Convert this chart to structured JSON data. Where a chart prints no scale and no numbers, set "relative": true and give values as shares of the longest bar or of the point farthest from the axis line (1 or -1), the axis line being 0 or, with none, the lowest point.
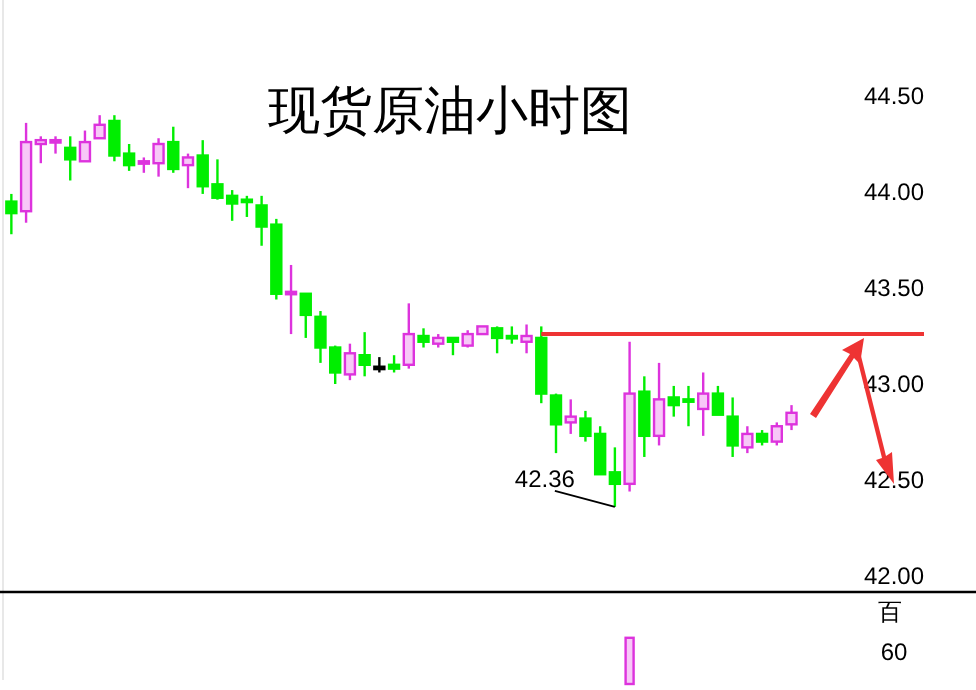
{
  "chart_data": [
    {
      "type": "candlestick",
      "title": "现货原油小时图",
      "categories": [
        null,
        null,
        null,
        null,
        null,
        null,
        null,
        null,
        null,
        null,
        null,
        null,
        null,
        null,
        null,
        null,
        null,
        null,
        null,
        null,
        null,
        null,
        null,
        null,
        null,
        null,
        null,
        null,
        null,
        null,
        null,
        null,
        null,
        null,
        null,
        null,
        null,
        null,
        null,
        null,
        null,
        null,
        null,
        null,
        null,
        null,
        null,
        null,
        null,
        null,
        null,
        null,
        null,
        null
      ],
      "ohlc": [
        [
          43.95,
          43.99,
          43.78,
          43.89
        ],
        [
          43.9,
          44.36,
          43.84,
          44.26
        ],
        [
          44.25,
          44.29,
          44.15,
          44.27
        ],
        [
          44.26,
          44.29,
          44.2,
          44.27
        ],
        [
          44.23,
          44.29,
          44.06,
          44.17
        ],
        [
          44.16,
          44.32,
          44.16,
          44.26
        ],
        [
          44.28,
          44.4,
          44.28,
          44.35
        ],
        [
          44.37,
          44.4,
          44.16,
          44.19
        ],
        [
          44.2,
          44.25,
          44.11,
          44.14
        ],
        [
          44.15,
          44.18,
          44.1,
          44.16
        ],
        [
          44.15,
          44.28,
          44.08,
          44.25
        ],
        [
          44.26,
          44.34,
          44.1,
          44.12
        ],
        [
          44.14,
          44.2,
          44.02,
          44.18
        ],
        [
          44.19,
          44.27,
          43.99,
          44.03
        ],
        [
          44.04,
          44.17,
          43.96,
          43.97
        ],
        [
          43.98,
          44.01,
          43.85,
          43.94
        ],
        [
          43.96,
          43.98,
          43.87,
          43.95
        ],
        [
          43.93,
          43.98,
          43.72,
          43.82
        ],
        [
          43.83,
          43.86,
          43.44,
          43.47
        ],
        [
          43.47,
          43.62,
          43.26,
          43.48
        ],
        [
          43.47,
          43.47,
          43.24,
          43.36
        ],
        [
          43.35,
          43.38,
          43.11,
          43.19
        ],
        [
          43.19,
          43.2,
          43.0,
          43.06
        ],
        [
          43.05,
          43.21,
          43.02,
          43.16
        ],
        [
          43.15,
          43.27,
          43.04,
          43.1
        ],
        [
          43.09,
          43.14,
          43.06,
          43.09
        ],
        [
          43.1,
          43.15,
          43.06,
          43.08
        ],
        [
          43.1,
          43.42,
          43.08,
          43.26
        ],
        [
          43.25,
          43.29,
          43.19,
          43.22
        ],
        [
          43.21,
          43.26,
          43.19,
          43.24
        ],
        [
          43.24,
          43.24,
          43.15,
          43.22
        ],
        [
          43.2,
          43.28,
          43.19,
          43.26
        ],
        [
          43.26,
          43.3,
          43.26,
          43.3
        ],
        [
          43.29,
          43.3,
          43.16,
          43.24
        ],
        [
          43.25,
          43.3,
          43.21,
          43.24
        ],
        [
          43.22,
          43.31,
          43.16,
          43.25
        ],
        [
          43.24,
          43.3,
          42.9,
          42.95
        ],
        [
          42.94,
          42.95,
          42.64,
          42.79
        ],
        [
          42.8,
          42.92,
          42.74,
          42.83
        ],
        [
          42.82,
          42.86,
          42.7,
          42.73
        ],
        [
          42.74,
          42.78,
          42.53,
          42.53
        ],
        [
          42.54,
          42.67,
          42.36,
          42.48
        ],
        [
          42.48,
          43.22,
          42.44,
          42.95
        ],
        [
          42.96,
          43.04,
          42.62,
          42.73
        ],
        [
          42.73,
          43.11,
          42.68,
          42.92
        ],
        [
          42.93,
          42.99,
          42.83,
          42.89
        ],
        [
          42.92,
          42.99,
          42.78,
          42.91
        ],
        [
          42.87,
          43.06,
          42.73,
          42.95
        ],
        [
          42.95,
          42.99,
          42.84,
          42.84
        ],
        [
          42.83,
          42.93,
          42.62,
          42.68
        ],
        [
          42.67,
          42.78,
          42.64,
          42.74
        ],
        [
          42.74,
          42.76,
          42.68,
          42.7
        ],
        [
          42.7,
          42.8,
          42.68,
          42.78
        ],
        [
          42.79,
          42.89,
          42.76,
          42.85
        ]
      ],
      "colors": [
        "#00ee00",
        "#dd33dd",
        "#dd33dd",
        "#dd33dd",
        "#00ee00",
        "#dd33dd",
        "#dd33dd",
        "#00ee00",
        "#00ee00",
        "#dd33dd",
        "#dd33dd",
        "#00ee00",
        "#dd33dd",
        "#00ee00",
        "#00ee00",
        "#00ee00",
        "#00ee00",
        "#00ee00",
        "#00ee00",
        "#dd33dd",
        "#00ee00",
        "#00ee00",
        "#00ee00",
        "#dd33dd",
        "#00ee00",
        "#000000",
        "#00ee00",
        "#dd33dd",
        "#00ee00",
        "#dd33dd",
        "#00ee00",
        "#dd33dd",
        "#dd33dd",
        "#00ee00",
        "#00ee00",
        "#dd33dd",
        "#00ee00",
        "#00ee00",
        "#dd33dd",
        "#00ee00",
        "#00ee00",
        "#00ee00",
        "#dd33dd",
        "#00ee00",
        "#dd33dd",
        "#00ee00",
        "#00ee00",
        "#dd33dd",
        "#00ee00",
        "#00ee00",
        "#dd33dd",
        "#00ee00",
        "#dd33dd",
        "#dd33dd"
      ],
      "ylim": [
        42.0,
        44.5
      ],
      "yticks": [
        {
          "value": 42.0,
          "label": "42.00"
        },
        {
          "value": 42.5,
          "label": "42.50"
        },
        {
          "value": 43.0,
          "label": "43.00"
        },
        {
          "value": 43.5,
          "label": "43.50"
        },
        {
          "value": 44.0,
          "label": "44.00"
        },
        {
          "value": 44.5,
          "label": "44.50"
        }
      ],
      "tick_labels": "y",
      "ref_lines": [
        {
          "axis": "y",
          "value": 43.26,
          "color": "#ee3333"
        }
      ],
      "annotations": [
        "42.36"
      ]
    },
    {
      "type": "bar",
      "relative": true,
      "ylabel": "百",
      "color": "#dd33dd",
      "categories": [
        null,
        null,
        null,
        null,
        null,
        null,
        null,
        null,
        null,
        null,
        null,
        null,
        null,
        null,
        null,
        null,
        null,
        null,
        null,
        null,
        null,
        null,
        null,
        null,
        null,
        null,
        null,
        null,
        null,
        null,
        null,
        null,
        null,
        null,
        null,
        null,
        null,
        null,
        null,
        null,
        null,
        null,
        null,
        null,
        null,
        null,
        null,
        null,
        null,
        null,
        null,
        null,
        null,
        null
      ],
      "values": [
        null,
        null,
        null,
        null,
        null,
        null,
        null,
        null,
        null,
        null,
        null,
        null,
        null,
        null,
        null,
        null,
        null,
        null,
        null,
        null,
        null,
        null,
        null,
        null,
        null,
        null,
        null,
        null,
        null,
        null,
        null,
        null,
        null,
        null,
        null,
        null,
        null,
        null,
        null,
        null,
        null,
        null,
        1,
        null,
        null,
        null,
        null,
        null,
        null,
        null,
        null,
        null,
        null,
        null
      ],
      "annotations": [
        "60"
      ]
    }
  ]
}
